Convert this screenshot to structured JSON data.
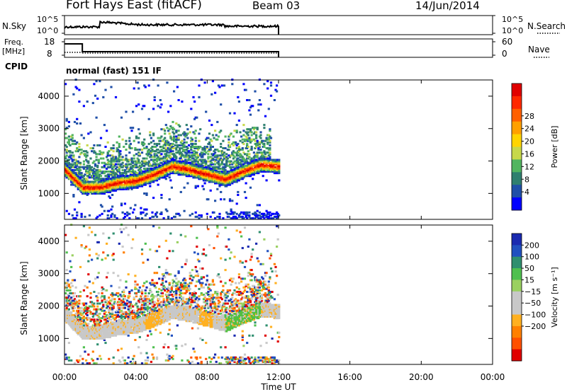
{
  "header": {
    "radar": "Fort Hays East (fitACF)",
    "beam": "Beam 03",
    "date": "14/Jun/2014"
  },
  "panels": {
    "nsky_label": "N.Sky",
    "nsky_ticks": [
      "10^5",
      "10^0"
    ],
    "nsearch_label": "N.Search",
    "nsearch_ticks": [
      "10^5",
      "10^0"
    ],
    "freq_label": "Freq.",
    "freq_unit": "[MHz]",
    "freq_ticks": [
      "18",
      "8"
    ],
    "nave_label": "Nave",
    "nave_ticks": [
      "60",
      "0"
    ],
    "cpid_label": "CPID",
    "cpid_value": "normal (fast) 151 IF"
  },
  "chart_data": [
    {
      "type": "heatmap",
      "name": "power",
      "ylabel": "Slant Range [km]",
      "xlabel": "Time UT",
      "x_ticks": [
        "00:00",
        "04:00",
        "08:00",
        "12:00",
        "16:00",
        "20:00",
        "00:00"
      ],
      "xlim_hours": [
        0,
        24
      ],
      "data_end_hour": 12,
      "y_ticks": [
        1000,
        2000,
        3000,
        4000
      ],
      "ylim": [
        200,
        4500
      ],
      "colorbar_label": "Power [dB]",
      "colorbar_ticks": [
        4,
        8,
        12,
        16,
        20,
        24,
        28
      ],
      "colorbar_colors": [
        "#0000ff",
        "#1f4fa8",
        "#2f7f6f",
        "#52b560",
        "#c7d84a",
        "#ffd400",
        "#ffa000",
        "#ff6000",
        "#ff2800",
        "#e00000"
      ],
      "echo_band_center_km": [
        [
          0,
          1700
        ],
        [
          1,
          1150
        ],
        [
          2,
          1150
        ],
        [
          3,
          1300
        ],
        [
          4,
          1350
        ],
        [
          5,
          1550
        ],
        [
          6,
          1800
        ],
        [
          7,
          1700
        ],
        [
          8,
          1550
        ],
        [
          9,
          1400
        ],
        [
          10,
          1650
        ],
        [
          11,
          1850
        ],
        [
          12,
          1800
        ]
      ]
    },
    {
      "type": "heatmap",
      "name": "velocity",
      "ylabel": "Slant Range [km]",
      "xlabel": "Time UT",
      "x_ticks": [
        "00:00",
        "04:00",
        "08:00",
        "12:00",
        "16:00",
        "20:00",
        "00:00"
      ],
      "xlim_hours": [
        0,
        24
      ],
      "data_end_hour": 12,
      "y_ticks": [
        1000,
        2000,
        3000,
        4000
      ],
      "ylim": [
        200,
        4500
      ],
      "colorbar_label": "Velocity [m s⁻¹]",
      "colorbar_ticks": [
        "200",
        "100",
        "50",
        "15",
        "−15",
        "−50",
        "−100",
        "−200"
      ],
      "colorbar_colors": [
        "#1a2ab0",
        "#2050c0",
        "#2f8f6f",
        "#4fc04f",
        "#9ad060",
        "#c8c8c8",
        "#c8c8c8",
        "#ffb020",
        "#ff8000",
        "#ff5000",
        "#e00000"
      ]
    }
  ]
}
